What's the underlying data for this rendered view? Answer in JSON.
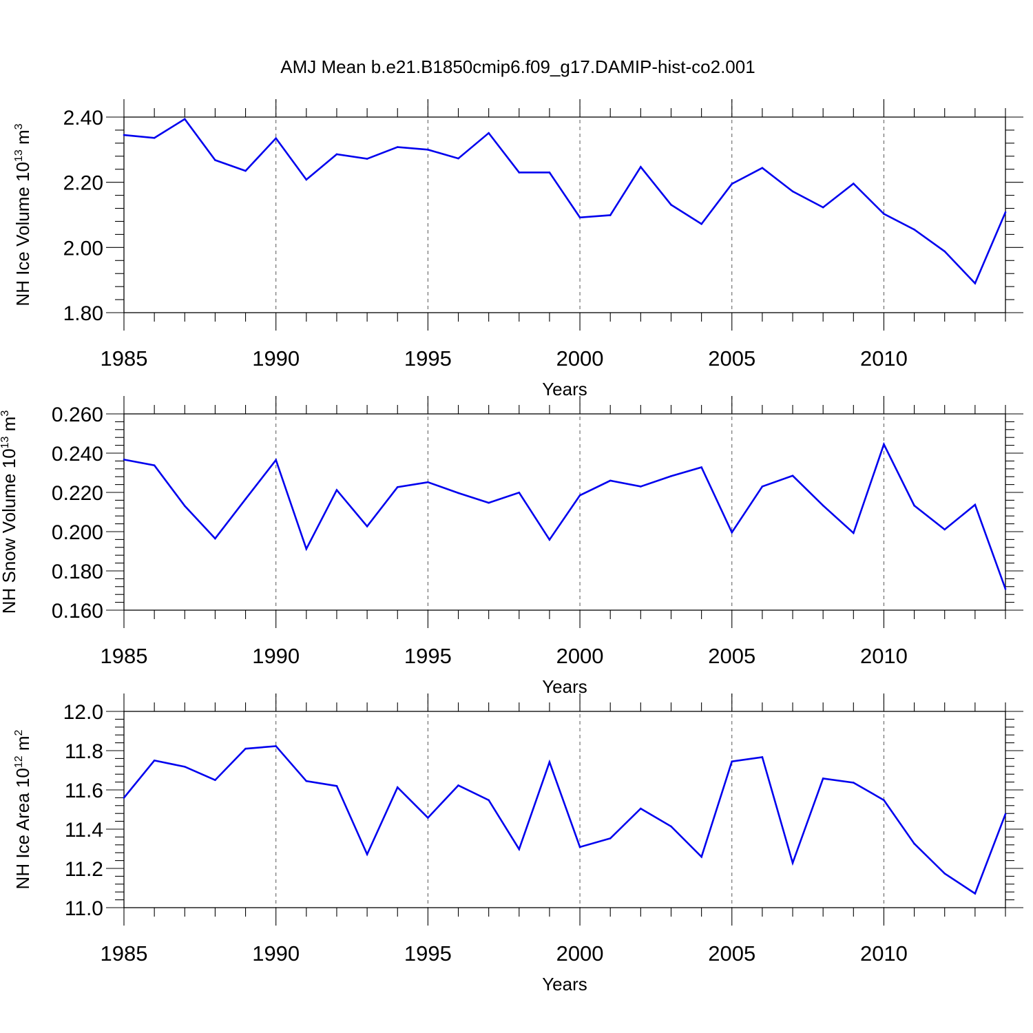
{
  "figure_title": "AMJ Mean b.e21.B1850cmip6.f09_g17.DAMIP-hist-co2.001",
  "colors": {
    "line": "#0000ee",
    "axes": "#000000",
    "grid": "#555555"
  },
  "chart_data": [
    {
      "type": "line",
      "id": "ice-volume",
      "ylabel_main": "NH Ice Volume 10",
      "ylabel_exp": "13",
      "ylabel_unit": " m",
      "ylabel_unit_exp": "3",
      "xlabel": "Years",
      "xlim": [
        1985,
        2014
      ],
      "ylim": [
        1.8,
        2.4
      ],
      "yticks": [
        1.8,
        2.0,
        2.2,
        2.4
      ],
      "ytick_labels": [
        "1.80",
        "2.00",
        "2.20",
        "2.40"
      ],
      "xticks": [
        1985,
        1990,
        1995,
        2000,
        2005,
        2010
      ],
      "xtick_labels": [
        "1985",
        "1990",
        "1995",
        "2000",
        "2005",
        "2010"
      ],
      "x": [
        1985,
        1986,
        1987,
        1988,
        1989,
        1990,
        1991,
        1992,
        1993,
        1994,
        1995,
        1996,
        1997,
        1998,
        1999,
        2000,
        2001,
        2002,
        2003,
        2004,
        2005,
        2006,
        2007,
        2008,
        2009,
        2010,
        2011,
        2012,
        2013,
        2014
      ],
      "values": [
        2.345,
        2.336,
        2.394,
        2.268,
        2.235,
        2.335,
        2.208,
        2.286,
        2.272,
        2.308,
        2.3,
        2.273,
        2.351,
        2.23,
        2.23,
        2.092,
        2.099,
        2.247,
        2.131,
        2.072,
        2.195,
        2.244,
        2.172,
        2.123,
        2.196,
        2.103,
        2.055,
        1.988,
        1.89,
        2.108
      ]
    },
    {
      "type": "line",
      "id": "snow-volume",
      "ylabel_main": "NH Snow Volume 10",
      "ylabel_exp": "13",
      "ylabel_unit": " m",
      "ylabel_unit_exp": "3",
      "xlabel": "Years",
      "xlim": [
        1985,
        2014
      ],
      "ylim": [
        0.16,
        0.26
      ],
      "yticks": [
        0.16,
        0.18,
        0.2,
        0.22,
        0.24,
        0.26
      ],
      "ytick_labels": [
        "0.160",
        "0.180",
        "0.200",
        "0.220",
        "0.240",
        "0.260"
      ],
      "xticks": [
        1985,
        1990,
        1995,
        2000,
        2005,
        2010
      ],
      "xtick_labels": [
        "1985",
        "1990",
        "1995",
        "2000",
        "2005",
        "2010"
      ],
      "x": [
        1985,
        1986,
        1987,
        1988,
        1989,
        1990,
        1991,
        1992,
        1993,
        1994,
        1995,
        1996,
        1997,
        1998,
        1999,
        2000,
        2001,
        2002,
        2003,
        2004,
        2005,
        2006,
        2007,
        2008,
        2009,
        2010,
        2011,
        2012,
        2013,
        2014
      ],
      "values": [
        0.2367,
        0.2338,
        0.2131,
        0.1965,
        0.2166,
        0.2365,
        0.1912,
        0.2212,
        0.2027,
        0.2227,
        0.2252,
        0.2197,
        0.2147,
        0.2199,
        0.1959,
        0.2185,
        0.226,
        0.223,
        0.2283,
        0.2328,
        0.1996,
        0.223,
        0.2285,
        0.2133,
        0.1993,
        0.2445,
        0.2133,
        0.2011,
        0.2137,
        0.1708
      ]
    },
    {
      "type": "line",
      "id": "ice-area",
      "ylabel_main": "NH Ice Area 10",
      "ylabel_exp": "12",
      "ylabel_unit": " m",
      "ylabel_unit_exp": "2",
      "xlabel": "Years",
      "xlim": [
        1985,
        2014
      ],
      "ylim": [
        11.0,
        12.0
      ],
      "yticks": [
        11.0,
        11.2,
        11.4,
        11.6,
        11.8,
        12.0
      ],
      "ytick_labels": [
        "11.0",
        "11.2",
        "11.4",
        "11.6",
        "11.8",
        "12.0"
      ],
      "xticks": [
        1985,
        1990,
        1995,
        2000,
        2005,
        2010
      ],
      "xtick_labels": [
        "1985",
        "1990",
        "1995",
        "2000",
        "2005",
        "2010"
      ],
      "x": [
        1985,
        1986,
        1987,
        1988,
        1989,
        1990,
        1991,
        1992,
        1993,
        1994,
        1995,
        1996,
        1997,
        1998,
        1999,
        2000,
        2001,
        2002,
        2003,
        2004,
        2005,
        2006,
        2007,
        2008,
        2009,
        2010,
        2011,
        2012,
        2013,
        2014
      ],
      "values": [
        11.56,
        11.75,
        11.718,
        11.65,
        11.81,
        11.823,
        11.645,
        11.62,
        11.272,
        11.613,
        11.458,
        11.623,
        11.548,
        11.298,
        11.742,
        11.309,
        11.353,
        11.505,
        11.414,
        11.259,
        11.745,
        11.767,
        11.228,
        11.658,
        11.637,
        11.548,
        11.326,
        11.174,
        11.072,
        11.477
      ]
    }
  ]
}
